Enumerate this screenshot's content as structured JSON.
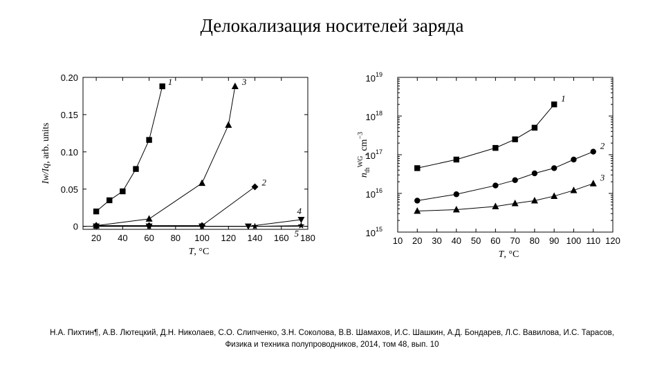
{
  "title": "Делокализация носителей заряда",
  "caption": {
    "authors": "Н.А. Пихтин¶, А.В. Лютецкий, Д.Н. Николаев, С.О. Слипченко, З.Н. Соколова, В.В. Шамахов, И.С. Шашкин, А.Д. Бондарев, Л.С. Вавилова, И.С. Тарасов,",
    "source": "Физика и техника полупроводников, 2014, том 48, вып. 10"
  },
  "chart_data": [
    {
      "type": "line",
      "title": "",
      "xlabel": "T, °C",
      "ylabel": "I_w/I_q, arb. units",
      "xlim": [
        10,
        180
      ],
      "ylim": [
        -0.004,
        0.2
      ],
      "xticks": [
        20,
        40,
        60,
        80,
        100,
        120,
        140,
        160,
        180
      ],
      "yticks": [
        0,
        0.05,
        0.1,
        0.15,
        0.2
      ],
      "ytick_labels": [
        "0",
        "0.05",
        "0.10",
        "0.15",
        "0.20"
      ],
      "grid": false,
      "series": [
        {
          "name": "1",
          "marker": "square",
          "x": [
            20,
            30,
            40,
            50,
            60,
            70
          ],
          "y": [
            0.02,
            0.035,
            0.047,
            0.077,
            0.116,
            0.188
          ]
        },
        {
          "name": "3",
          "marker": "triangle",
          "x": [
            20,
            60,
            100,
            120,
            125
          ],
          "y": [
            0.001,
            0.01,
            0.058,
            0.136,
            0.188
          ]
        },
        {
          "name": "2",
          "marker": "diamond",
          "x": [
            20,
            60,
            100,
            140
          ],
          "y": [
            0.001,
            0.001,
            0.001,
            0.053
          ]
        },
        {
          "name": "4",
          "marker": "triangle-down",
          "x": [
            20,
            60,
            100,
            135,
            175
          ],
          "y": [
            0,
            0,
            0,
            0,
            0.009
          ]
        },
        {
          "name": "5",
          "marker": "star",
          "x": [
            20,
            60,
            100,
            140,
            175
          ],
          "y": [
            0,
            0,
            0,
            0,
            0.001
          ]
        }
      ]
    },
    {
      "type": "line",
      "title": "",
      "xlabel": "T, °C",
      "ylabel": "n_th^WG, cm^-3",
      "yscale": "log",
      "xlim": [
        10,
        120
      ],
      "ylim": [
        1000000000000000.0,
        1e+19
      ],
      "xticks": [
        10,
        20,
        30,
        40,
        50,
        60,
        70,
        80,
        90,
        100,
        110,
        120
      ],
      "yticks": [
        1000000000000000.0,
        1e+16,
        1e+17,
        1e+18,
        1e+19
      ],
      "ytick_exponents": [
        "15",
        "16",
        "17",
        "18",
        "19"
      ],
      "ytick_base": "10",
      "grid": false,
      "series": [
        {
          "name": "1",
          "marker": "square",
          "x": [
            20,
            40,
            60,
            70,
            80,
            90
          ],
          "y": [
            4.5e+16,
            7.5e+16,
            1.5e+17,
            2.5e+17,
            5e+17,
            2e+18
          ]
        },
        {
          "name": "2",
          "marker": "circle",
          "x": [
            20,
            40,
            60,
            70,
            80,
            90,
            100,
            110
          ],
          "y": [
            6500000000000000.0,
            9500000000000000.0,
            1.6e+16,
            2.2e+16,
            3.3e+16,
            4.5e+16,
            7.5e+16,
            1.2e+17
          ]
        },
        {
          "name": "3",
          "marker": "triangle",
          "x": [
            20,
            40,
            60,
            70,
            80,
            90,
            100,
            110
          ],
          "y": [
            3500000000000000.0,
            3800000000000000.0,
            4600000000000000.0,
            5500000000000000.0,
            6500000000000000.0,
            8500000000000000.0,
            1.2e+16,
            1.8e+16
          ]
        }
      ]
    }
  ]
}
